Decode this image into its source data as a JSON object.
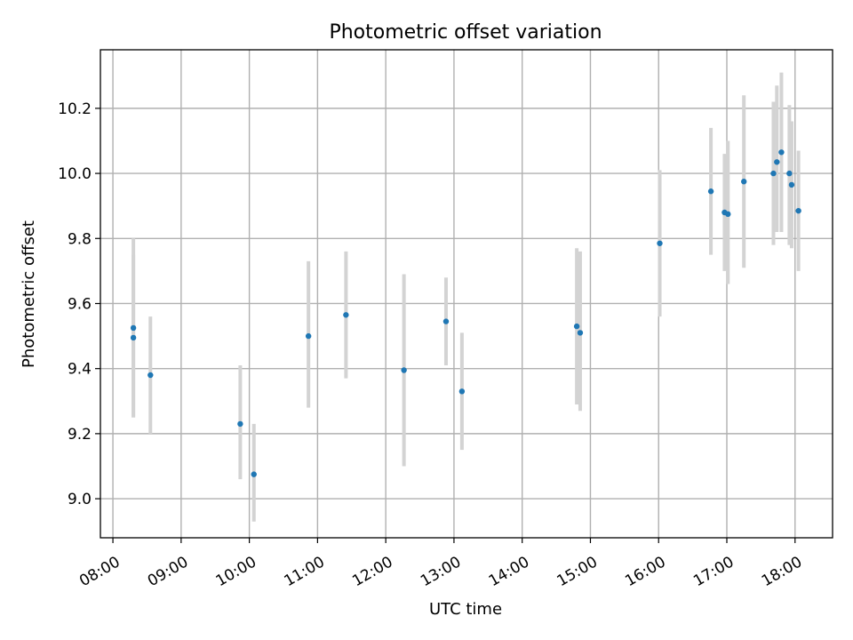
{
  "chart_data": {
    "type": "scatter",
    "title": "Photometric offset variation",
    "xlabel": "UTC time",
    "ylabel": "Photometric offset",
    "x_tick_labels": [
      "08:00",
      "09:00",
      "10:00",
      "11:00",
      "12:00",
      "13:00",
      "14:00",
      "15:00",
      "16:00",
      "17:00",
      "18:00"
    ],
    "y_tick_labels": [
      "9.0",
      "9.2",
      "9.4",
      "9.6",
      "9.8",
      "10.0",
      "10.2"
    ],
    "xlim": [
      "07:49",
      "18:33"
    ],
    "ylim": [
      8.88,
      10.38
    ],
    "grid": true,
    "series": [
      {
        "points": [
          {
            "x": "08:18",
            "y": 9.525,
            "ylow": 9.25,
            "yhigh": 9.8
          },
          {
            "x": "08:18",
            "y": 9.495,
            "ylow": 9.25,
            "yhigh": 9.75
          },
          {
            "x": "08:33",
            "y": 9.38,
            "ylow": 9.2,
            "yhigh": 9.56
          },
          {
            "x": "09:52",
            "y": 9.23,
            "ylow": 9.06,
            "yhigh": 9.41
          },
          {
            "x": "10:04",
            "y": 9.075,
            "ylow": 8.93,
            "yhigh": 9.23
          },
          {
            "x": "10:52",
            "y": 9.5,
            "ylow": 9.28,
            "yhigh": 9.73
          },
          {
            "x": "11:25",
            "y": 9.565,
            "ylow": 9.37,
            "yhigh": 9.76
          },
          {
            "x": "12:16",
            "y": 9.395,
            "ylow": 9.1,
            "yhigh": 9.69
          },
          {
            "x": "12:53",
            "y": 9.545,
            "ylow": 9.41,
            "yhigh": 9.68
          },
          {
            "x": "13:07",
            "y": 9.33,
            "ylow": 9.15,
            "yhigh": 9.51
          },
          {
            "x": "14:48",
            "y": 9.53,
            "ylow": 9.29,
            "yhigh": 9.77
          },
          {
            "x": "14:51",
            "y": 9.51,
            "ylow": 9.27,
            "yhigh": 9.76
          },
          {
            "x": "16:01",
            "y": 9.785,
            "ylow": 9.56,
            "yhigh": 10.01
          },
          {
            "x": "16:46",
            "y": 9.945,
            "ylow": 9.75,
            "yhigh": 10.14
          },
          {
            "x": "16:58",
            "y": 9.88,
            "ylow": 9.7,
            "yhigh": 10.06
          },
          {
            "x": "17:01",
            "y": 9.875,
            "ylow": 9.66,
            "yhigh": 10.1
          },
          {
            "x": "17:15",
            "y": 9.975,
            "ylow": 9.71,
            "yhigh": 10.24
          },
          {
            "x": "17:41",
            "y": 10.0,
            "ylow": 9.78,
            "yhigh": 10.22
          },
          {
            "x": "17:44",
            "y": 10.035,
            "ylow": 9.82,
            "yhigh": 10.27
          },
          {
            "x": "17:48",
            "y": 10.065,
            "ylow": 9.82,
            "yhigh": 10.31
          },
          {
            "x": "17:55",
            "y": 10.0,
            "ylow": 9.78,
            "yhigh": 10.21
          },
          {
            "x": "17:57",
            "y": 9.965,
            "ylow": 9.77,
            "yhigh": 10.16
          },
          {
            "x": "18:03",
            "y": 9.885,
            "ylow": 9.7,
            "yhigh": 10.07
          }
        ]
      }
    ],
    "marker_color": "#1f77b4",
    "errorbar_color": "#d3d3d3"
  }
}
